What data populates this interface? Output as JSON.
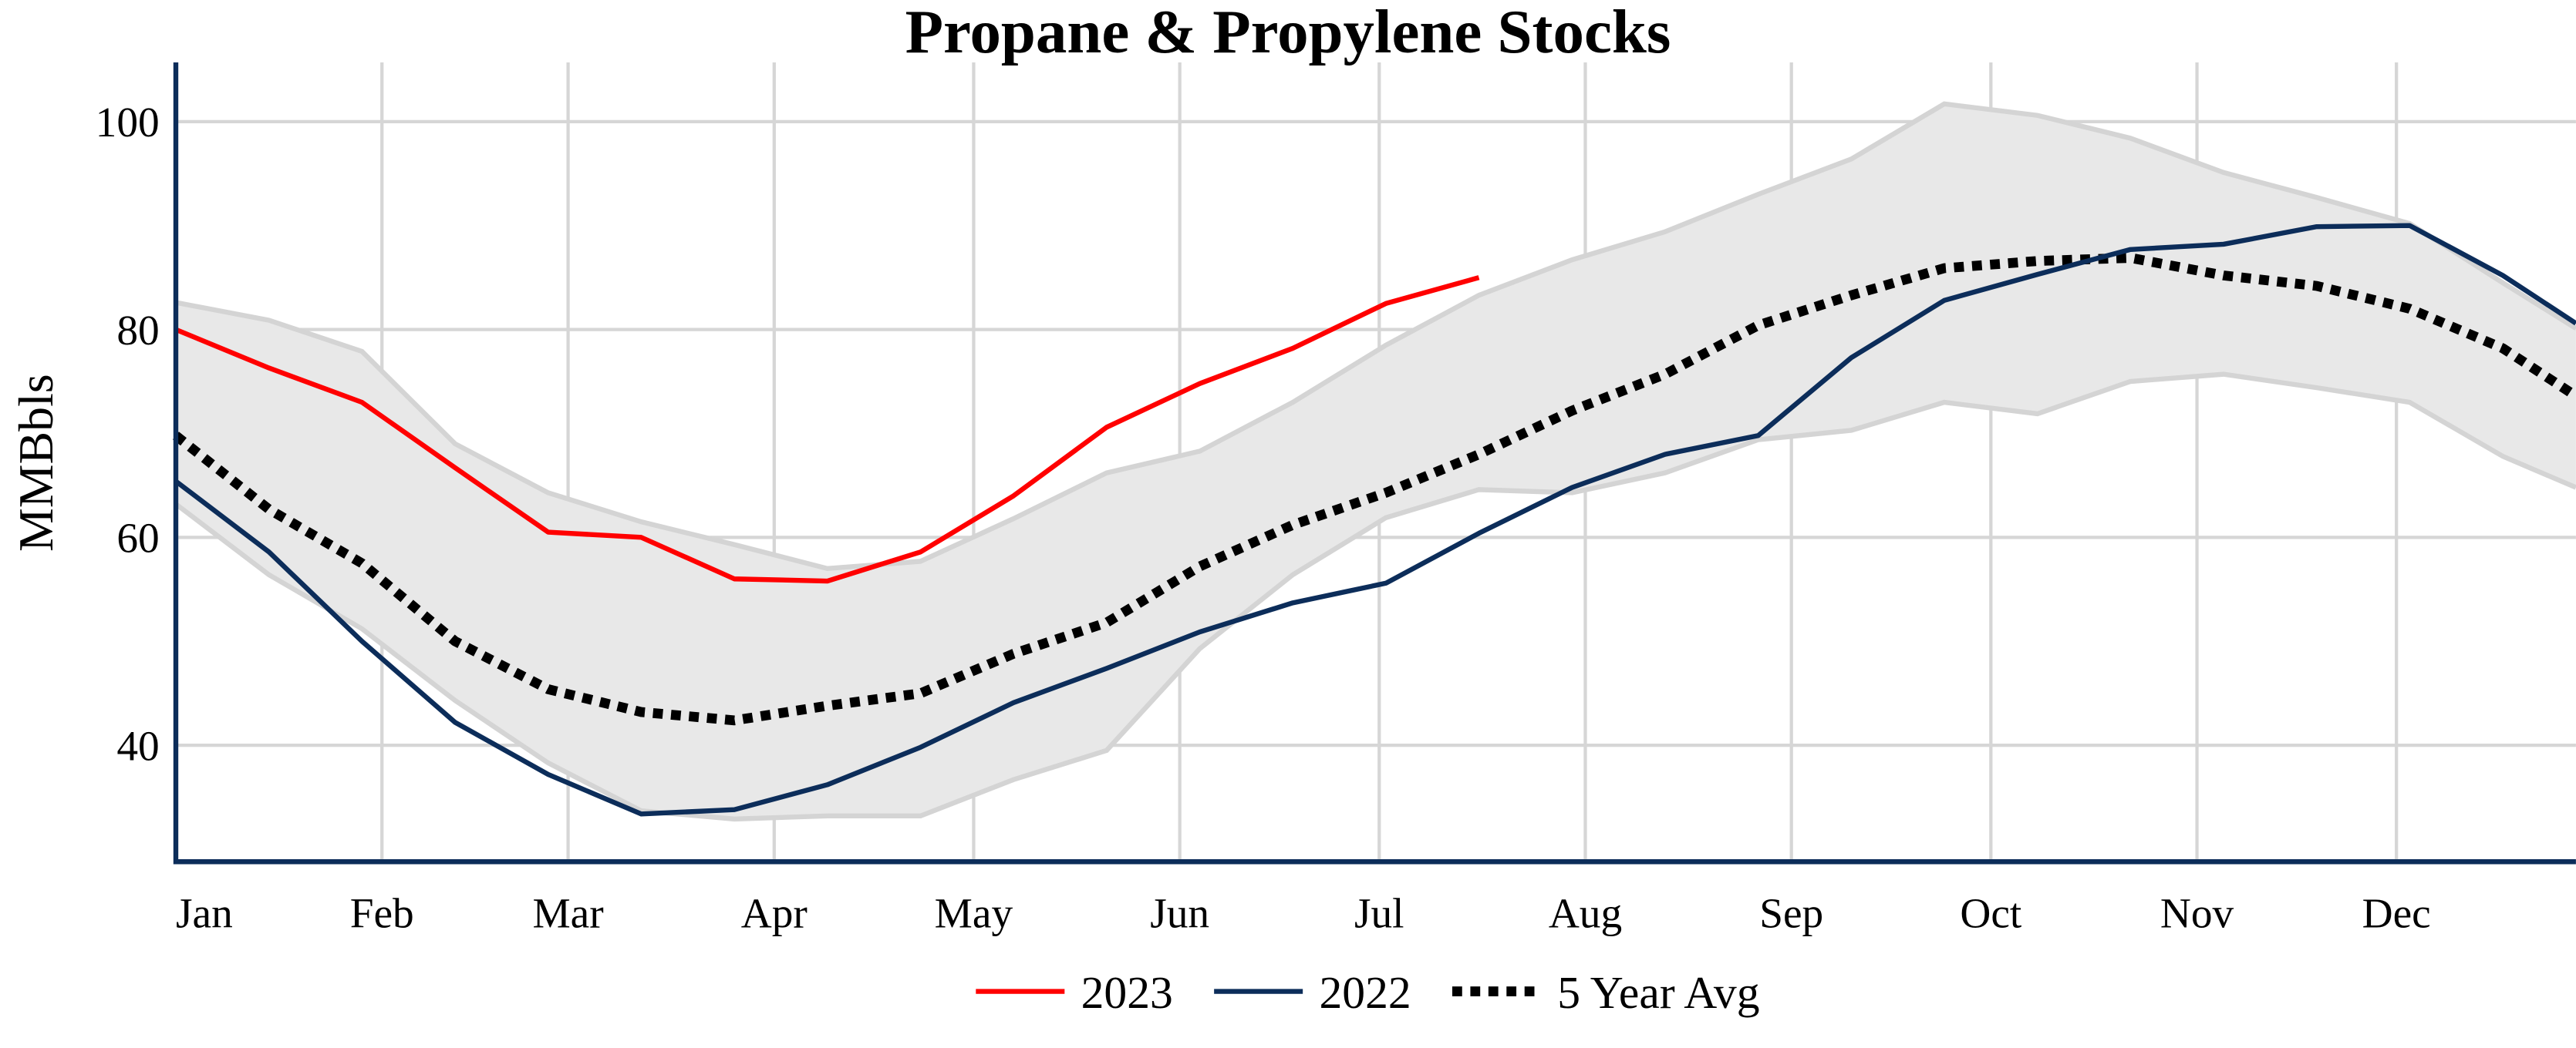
{
  "chart_data": {
    "type": "line",
    "title": "Propane & Propylene Stocks",
    "y_label": "MMBbls",
    "x": [
      0,
      14,
      28,
      42,
      56,
      70,
      84,
      98,
      112,
      126,
      140,
      154,
      168,
      182,
      196,
      210,
      224,
      238,
      252,
      266,
      280,
      294,
      308,
      322,
      336,
      350,
      361
    ],
    "series": [
      {
        "name": "2023",
        "color": "#ff0000",
        "dash": "solid",
        "values": [
          80,
          76.3,
          73,
          66.7,
          60.5,
          60,
          56,
          55.8,
          58.6,
          64,
          70.6,
          74.8,
          78.2,
          82.5,
          85,
          null,
          null,
          null,
          null,
          null,
          null,
          null,
          null,
          null,
          null,
          null,
          null
        ]
      },
      {
        "name": "2022",
        "color": "#0c2d5a",
        "dash": "solid",
        "values": [
          65.4,
          58.6,
          50,
          42.2,
          37.2,
          33.4,
          33.8,
          36.2,
          39.8,
          44.1,
          47.4,
          50.9,
          53.7,
          55.6,
          60.4,
          64.8,
          68,
          69.8,
          77.3,
          82.8,
          85.3,
          87.7,
          88.2,
          89.9,
          90,
          85.2,
          80.6
        ]
      },
      {
        "name": "5 Year Avg",
        "color": "#000000",
        "dash": "dotted",
        "values": [
          69.8,
          62.7,
          57.5,
          50,
          45.4,
          43.2,
          42.4,
          43.8,
          45,
          48.8,
          51.8,
          57.2,
          61.2,
          64.3,
          68,
          72.2,
          75.7,
          80.4,
          83.3,
          85.9,
          86.6,
          86.9,
          85.2,
          84.2,
          82,
          78.2,
          73.6
        ]
      }
    ],
    "band": {
      "color": "#e8e8e8",
      "edge_color": "#d4d4d4",
      "upper": [
        82.6,
        80.9,
        77.9,
        69,
        64.3,
        61.5,
        59.3,
        57,
        57.7,
        61.8,
        66.2,
        68.3,
        73,
        78.5,
        83.3,
        86.7,
        89.4,
        93,
        96.4,
        101.7,
        100.6,
        98.4,
        95.1,
        92.7,
        90.2,
        84.5,
        80.1
      ],
      "lower": [
        63.2,
        56.4,
        51.2,
        44.3,
        38.3,
        33.7,
        32.9,
        33.2,
        33.2,
        36.7,
        39.5,
        49.3,
        56.4,
        61.9,
        64.6,
        64.3,
        66.2,
        69.4,
        70.3,
        73,
        71.9,
        75,
        75.7,
        74.4,
        73,
        67.8,
        64.8
      ]
    },
    "xlim": [
      0,
      361
    ],
    "xticks": [
      {
        "value": 0,
        "label": "Jan"
      },
      {
        "value": 31,
        "label": "Feb"
      },
      {
        "value": 59,
        "label": "Mar"
      },
      {
        "value": 90,
        "label": "Apr"
      },
      {
        "value": 120,
        "label": "May"
      },
      {
        "value": 151,
        "label": "Jun"
      },
      {
        "value": 181,
        "label": "Jul"
      },
      {
        "value": 212,
        "label": "Aug"
      },
      {
        "value": 243,
        "label": "Sep"
      },
      {
        "value": 273,
        "label": "Oct"
      },
      {
        "value": 304,
        "label": "Nov"
      },
      {
        "value": 334,
        "label": "Dec"
      }
    ],
    "ylim": [
      28.8,
      105.7
    ],
    "yticks": [
      40,
      60,
      80,
      100
    ],
    "grid": true,
    "legend": "bottom"
  }
}
